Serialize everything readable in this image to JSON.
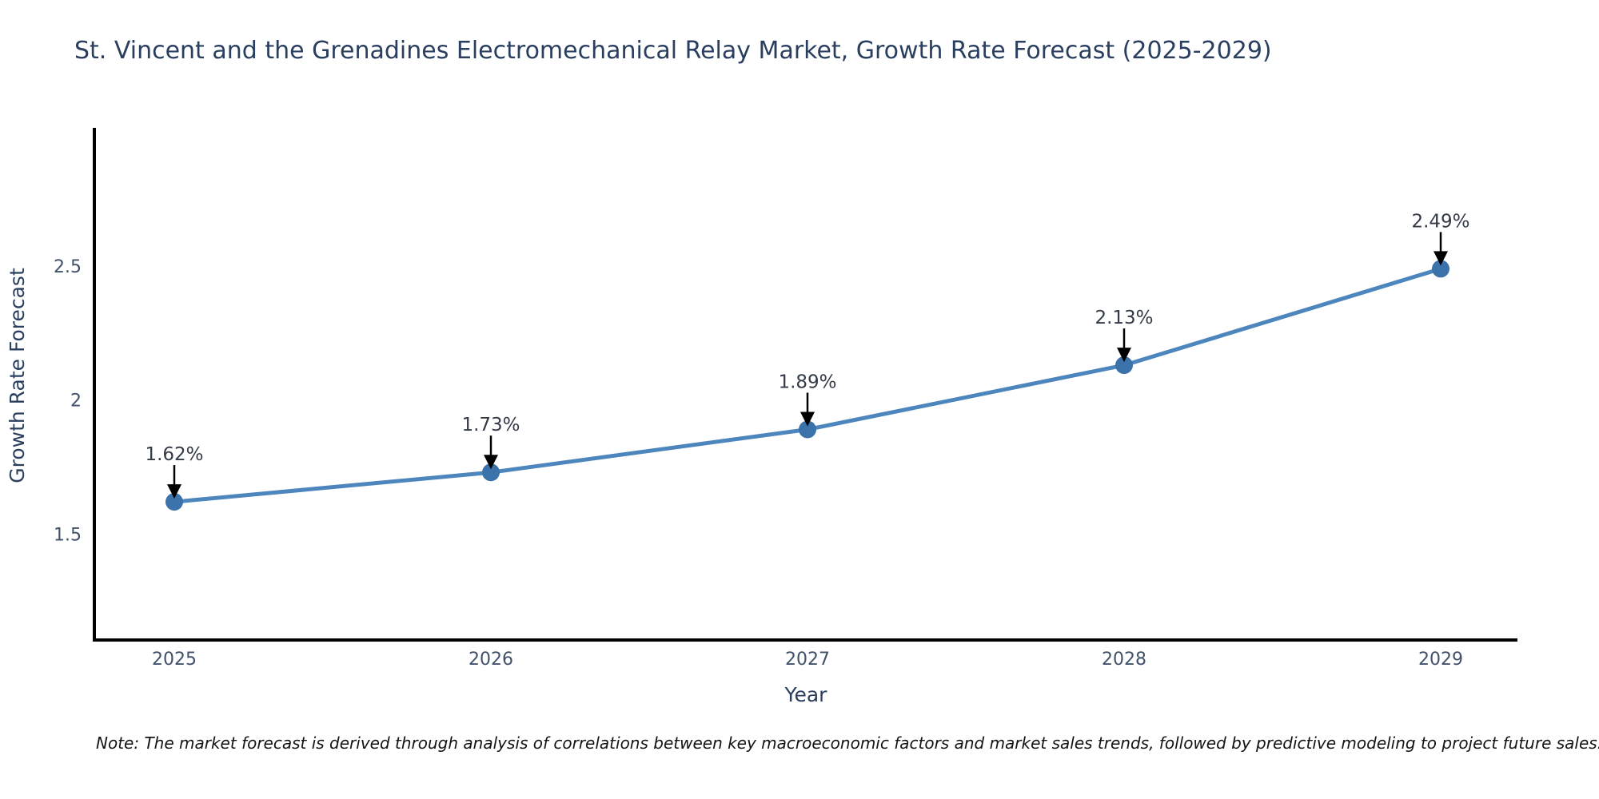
{
  "title": "St. Vincent and the Grenadines Electromechanical Relay Market, Growth Rate Forecast (2025-2029)",
  "note": "Note: The market forecast is derived through analysis of correlations between key macroeconomic factors and market sales trends, followed by predictive modeling to project future sales.",
  "chart_data": {
    "type": "line",
    "title": "St. Vincent and the Grenadines Electromechanical Relay Market, Growth Rate Forecast (2025-2029)",
    "x": [
      2025,
      2026,
      2027,
      2028,
      2029
    ],
    "series": [
      {
        "name": "Growth Rate Forecast",
        "values": [
          1.62,
          1.73,
          1.89,
          2.13,
          2.49
        ]
      }
    ],
    "point_labels": [
      "1.62%",
      "1.73%",
      "1.89%",
      "2.13%",
      "2.49%"
    ],
    "xlabel": "Year",
    "ylabel": "Growth Rate Forecast",
    "yticks": [
      1.5,
      2,
      2.5
    ],
    "ytick_labels": [
      "1.5",
      "2",
      "2.5"
    ],
    "ylim": [
      1.1,
      3.0
    ],
    "grid": false,
    "legend": false,
    "annotation_style": "value label with downward arrow to each marker",
    "colors": {
      "line": "#4d86bd",
      "marker": "#3b72aa",
      "arrow": "#000000",
      "axis": "#000000",
      "title_text": "#2a3f5f",
      "tick_text": "#42526b",
      "annotation_text": "#333b47",
      "note_text": "#141414",
      "background": "#ffffff"
    }
  }
}
